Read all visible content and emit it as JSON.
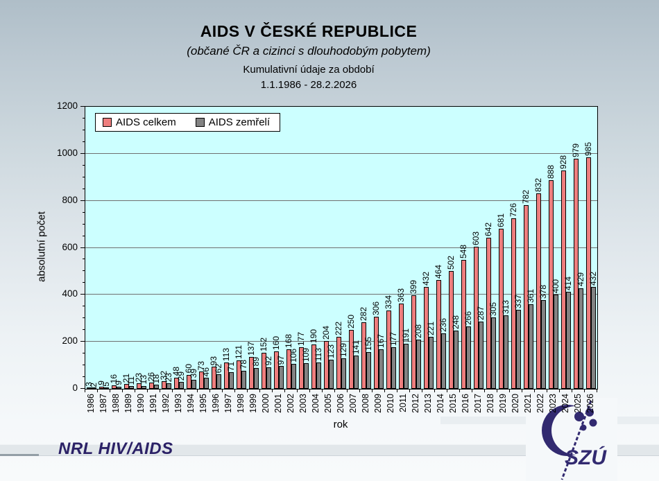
{
  "slide": {
    "title": "AIDS V ČESKÉ REPUBLICE",
    "subtitle": "(občané ČR a cizinci s dlouhodobým pobytem)",
    "period_label": "Kumulativní údaje za období",
    "period_range": "1.1.1986 - 28.2.2026"
  },
  "footer": {
    "nrl_label": "NRL HIV/AIDS",
    "logo_text": "SZÚ"
  },
  "chart_data": {
    "type": "bar",
    "title": "AIDS V ČESKÉ REPUBLICE",
    "xlabel": "rok",
    "ylabel": "absolutní počet",
    "ylim": [
      0,
      1200
    ],
    "ytick_step": 200,
    "ytick_minor_step": 50,
    "grid": true,
    "plot_bg": "#ccffff",
    "legend_position": "top-left-inside",
    "categories": [
      "1986",
      "1987",
      "1988",
      "1989",
      "1990",
      "1991",
      "1992",
      "1993",
      "1994",
      "1995",
      "1996",
      "1997",
      "1998",
      "1999",
      "2000",
      "2001",
      "2002",
      "2003",
      "2004",
      "2005",
      "2006",
      "2007",
      "2008",
      "2009",
      "2010",
      "2011",
      "2012",
      "2013",
      "2014",
      "2015",
      "2016",
      "2017",
      "2018",
      "2019",
      "2020",
      "2021",
      "2022",
      "2023",
      "2024",
      "2025",
      "2026"
    ],
    "series": [
      {
        "name": "AIDS celkem",
        "color": "#ee7e7e",
        "values": [
          3,
          9,
          16,
          21,
          23,
          26,
          32,
          48,
          60,
          73,
          93,
          113,
          121,
          137,
          152,
          160,
          168,
          177,
          190,
          204,
          222,
          250,
          282,
          306,
          334,
          363,
          399,
          432,
          464,
          502,
          548,
          603,
          642,
          681,
          726,
          782,
          832,
          888,
          928,
          979,
          985
        ]
      },
      {
        "name": "AIDS zemřelí",
        "color": "#838383",
        "values": [
          2,
          5,
          9,
          11,
          13,
          18,
          23,
          29,
          39,
          46,
          62,
          71,
          78,
          89,
          92,
          97,
          106,
          109,
          113,
          123,
          129,
          141,
          155,
          167,
          177,
          191,
          208,
          221,
          236,
          248,
          266,
          287,
          305,
          313,
          337,
          361,
          378,
          400,
          414,
          429,
          432
        ]
      }
    ]
  }
}
